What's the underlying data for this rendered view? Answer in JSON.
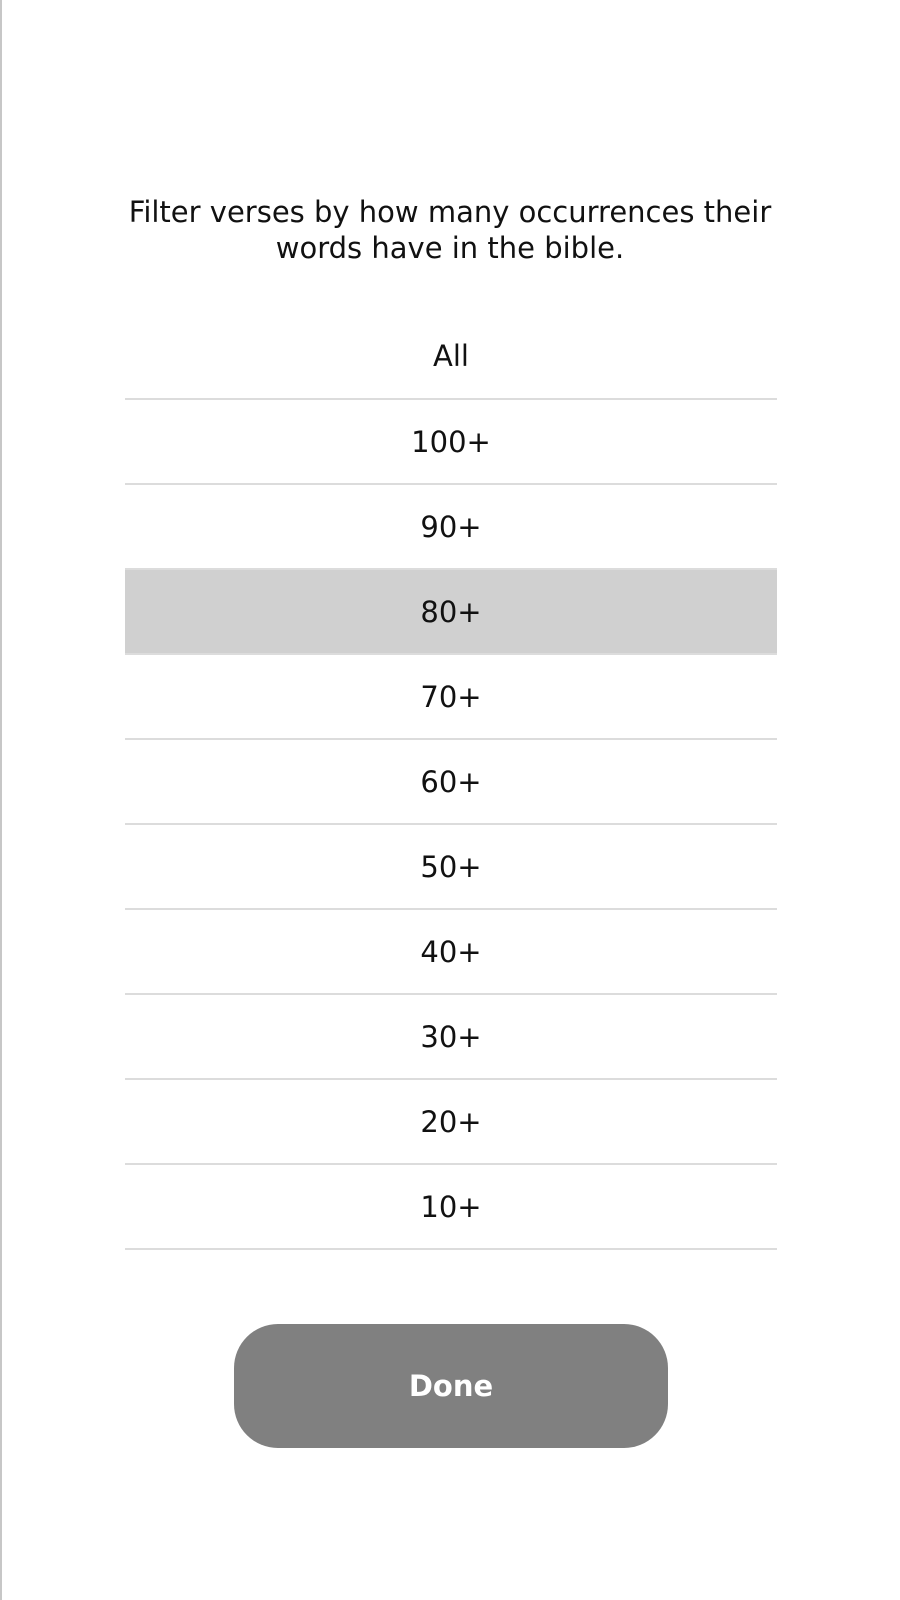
{
  "description": "Filter verses by how many occurrences their words have in the bible.",
  "options": [
    {
      "label": "All",
      "selected": false
    },
    {
      "label": "100+",
      "selected": false
    },
    {
      "label": "90+",
      "selected": false
    },
    {
      "label": "80+",
      "selected": true
    },
    {
      "label": "70+",
      "selected": false
    },
    {
      "label": "60+",
      "selected": false
    },
    {
      "label": "50+",
      "selected": false
    },
    {
      "label": "40+",
      "selected": false
    },
    {
      "label": "30+",
      "selected": false
    },
    {
      "label": "20+",
      "selected": false
    },
    {
      "label": "10+",
      "selected": false
    }
  ],
  "done_label": "Done",
  "colors": {
    "selected_row": "#d0d0d0",
    "divider": "#dcdcdc",
    "button": "#808080",
    "button_text": "#ffffff",
    "text": "#111111"
  }
}
